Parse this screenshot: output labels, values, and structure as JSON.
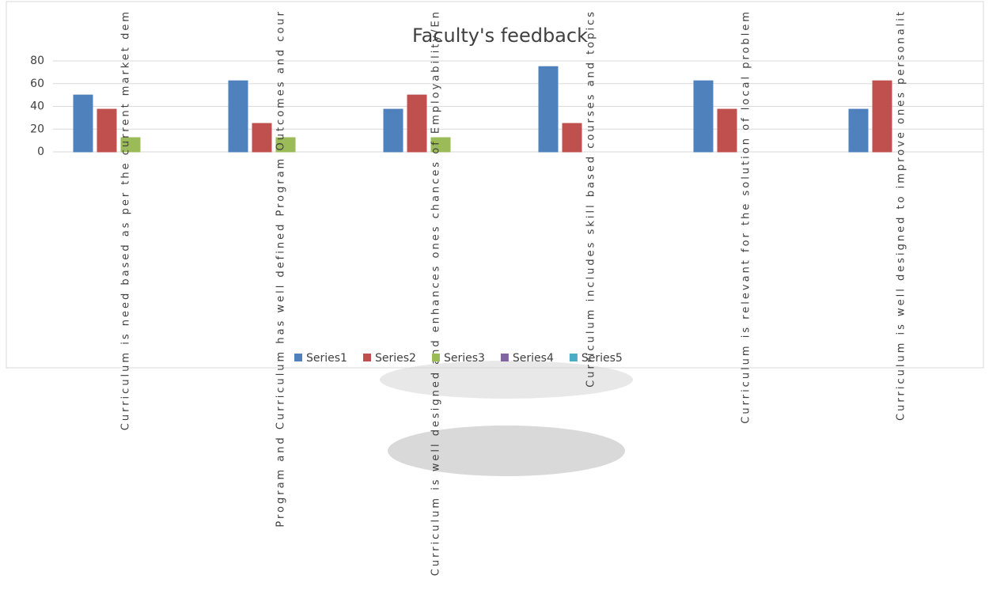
{
  "chart_data": {
    "type": "bar",
    "title": "Faculty's feedback",
    "categories": [
      "Curriculum  is need based as per the current market dem",
      "Program  and Curriculum  has well defined Program  Outcomes  and cour",
      "Curriculum  is well designed and enhances ones chances of Employability/En",
      "Curriculum  includes skill based courses and topics",
      "Curriculum  is relevant for the solution of local problem",
      "Curriculum  is well designed to improve ones personalit"
    ],
    "series": [
      {
        "name": "Series1",
        "color": "#4f81bd",
        "values": [
          50,
          62.5,
          37.5,
          75,
          62.5,
          37.5
        ]
      },
      {
        "name": "Series2",
        "color": "#c0504d",
        "values": [
          37.5,
          25,
          50,
          25,
          37.5,
          62.5
        ]
      },
      {
        "name": "Series3",
        "color": "#9bbb59",
        "values": [
          12.5,
          12.5,
          12.5,
          0,
          0,
          0
        ]
      },
      {
        "name": "Series4",
        "color": "#8064a2",
        "values": [
          0,
          0,
          0,
          0,
          0,
          0
        ]
      },
      {
        "name": "Series5",
        "color": "#4bacc6",
        "values": [
          0,
          0,
          0,
          0,
          0,
          0
        ]
      }
    ],
    "ylim": [
      0,
      80
    ],
    "yticks": [
      0,
      20,
      40,
      60,
      80
    ],
    "grid": true,
    "legend": "bottom"
  }
}
